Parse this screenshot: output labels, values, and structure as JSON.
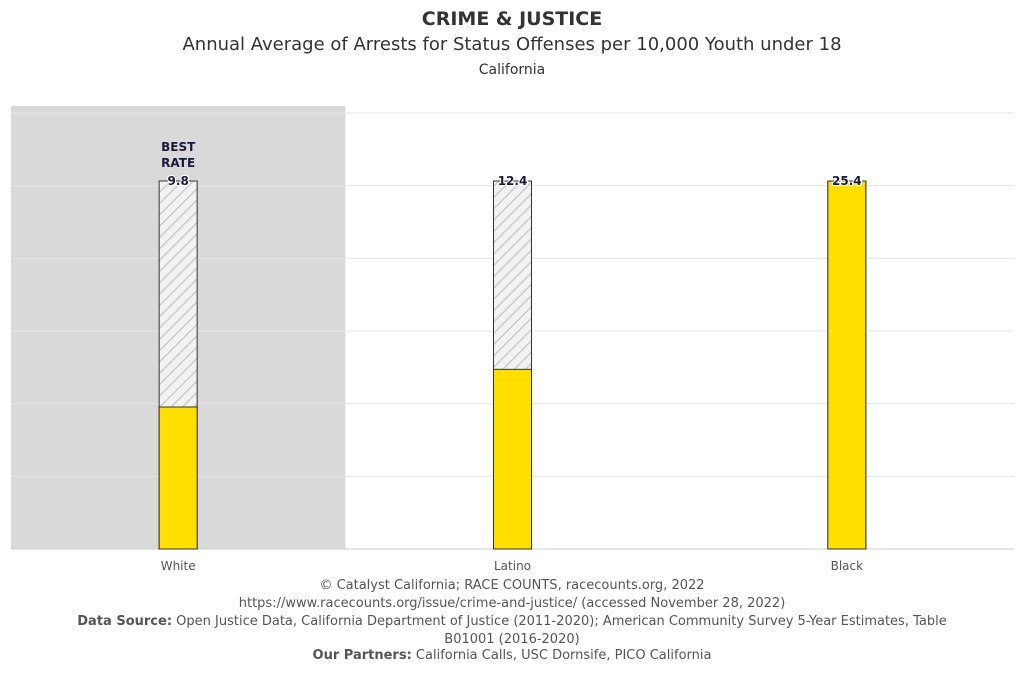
{
  "header": {
    "title": "CRIME & JUSTICE",
    "subtitle": "Annual Average of Arrests for Status Offenses per 10,000 Youth under 18",
    "geography": "California"
  },
  "chart_data": {
    "type": "bar",
    "title": "Annual Average of Arrests for Status Offenses per 10,000 Youth under 18",
    "categories": [
      "White",
      "Latino",
      "Black"
    ],
    "values": [
      9.8,
      12.4,
      25.4
    ],
    "data_labels": [
      "9.8",
      "12.4",
      "25.4"
    ],
    "best_rate_label": "BEST RATE",
    "best_category": "White",
    "highlighted_category": "White",
    "ylim": [
      0,
      25.4
    ],
    "grid": true,
    "colors": {
      "bar": "#FFDF00",
      "highlight": "#D9D9D9",
      "hatch": "#CCCCCC"
    }
  },
  "footer": {
    "copyright": "© Catalyst California; RACE COUNTS, racecounts.org, 2022",
    "url": "https://www.racecounts.org/issue/crime-and-justice/ (accessed November 28, 2022)",
    "data_source_label": "Data Source:",
    "data_source": "Open Justice Data, California Department of Justice (2011-2020); American Community Survey 5-Year Estimates, Table B01001 (2016-2020)",
    "partners_label": "Our Partners:",
    "partners": "California Calls, USC Dornsife, PICO California"
  }
}
